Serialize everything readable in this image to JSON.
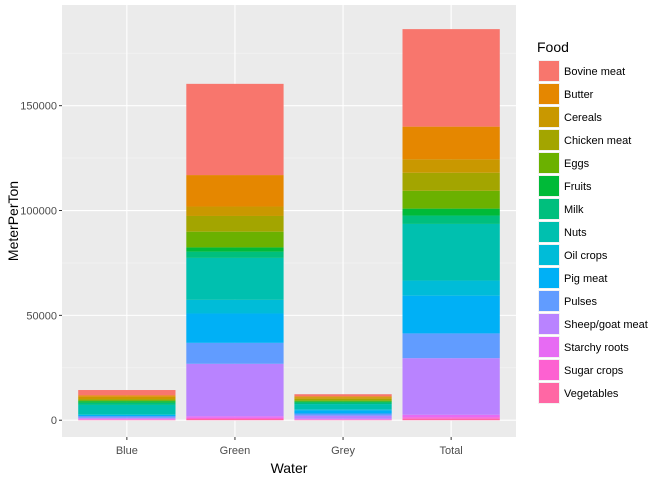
{
  "chart_data": {
    "type": "bar",
    "stacked": true,
    "xlabel": "Water",
    "ylabel": "MeterPerTon",
    "categories": [
      "Blue",
      "Green",
      "Grey",
      "Total"
    ],
    "ylim": [
      -8000,
      198000
    ],
    "yticks": [
      0,
      50000,
      100000,
      150000
    ],
    "ytick_labels": [
      "0",
      "50000",
      "100000",
      "150000"
    ],
    "grid": true,
    "legend": {
      "title": "Food",
      "position": "right"
    },
    "series": [
      {
        "name": "Bovine meat",
        "color": "#F8766D",
        "values": [
          2500,
          43500,
          1000,
          46500
        ]
      },
      {
        "name": "Butter",
        "color": "#E58700",
        "values": [
          700,
          15000,
          400,
          15600
        ]
      },
      {
        "name": "Cereals",
        "color": "#C99800",
        "values": [
          1100,
          4500,
          800,
          6400
        ]
      },
      {
        "name": "Chicken meat",
        "color": "#A3A500",
        "values": [
          500,
          7500,
          700,
          8600
        ]
      },
      {
        "name": "Eggs",
        "color": "#6BB100",
        "values": [
          500,
          7500,
          500,
          8500
        ]
      },
      {
        "name": "Fruits",
        "color": "#00BA38",
        "values": [
          800,
          2000,
          500,
          3300
        ]
      },
      {
        "name": "Milk",
        "color": "#00BF7D",
        "values": [
          1000,
          3000,
          800,
          4000
        ]
      },
      {
        "name": "Nuts",
        "color": "#00C0AF",
        "values": [
          4500,
          20000,
          2500,
          27000
        ]
      },
      {
        "name": "Oil crops",
        "color": "#00BCD8",
        "values": [
          300,
          6500,
          500,
          7200
        ]
      },
      {
        "name": "Pig meat",
        "color": "#00B0F6",
        "values": [
          500,
          14000,
          1500,
          18000
        ]
      },
      {
        "name": "Pulses",
        "color": "#619CFF",
        "values": [
          800,
          10000,
          1000,
          11800
        ]
      },
      {
        "name": "Sheep/goat meat",
        "color": "#B983FF",
        "values": [
          500,
          25000,
          1500,
          27000
        ]
      },
      {
        "name": "Starchy roots",
        "color": "#E76BF3",
        "values": [
          300,
          800,
          300,
          1200
        ]
      },
      {
        "name": "Sugar crops",
        "color": "#FD61D1",
        "values": [
          200,
          500,
          200,
          700
        ]
      },
      {
        "name": "Vegetables",
        "color": "#FF67A4",
        "values": [
          200,
          600,
          200,
          700
        ]
      }
    ]
  }
}
